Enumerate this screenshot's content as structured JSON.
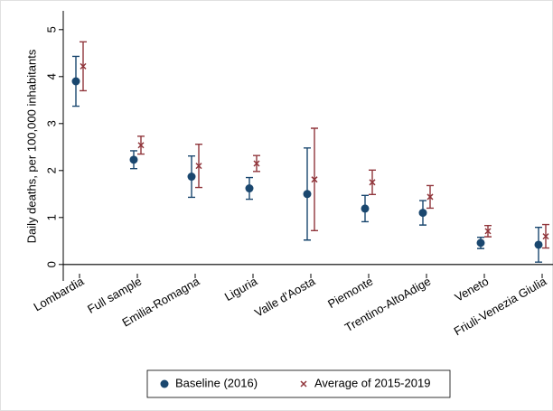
{
  "chart_data": {
    "type": "errorbar",
    "y_label": "Daily deaths, per 100,000 inhabitants",
    "categories": [
      "Lombardia",
      "Full sample",
      "Emilia-Romagna",
      "Liguria",
      "Valle d'Aosta",
      "Piemonte",
      "Trentino-AltoAdige",
      "Veneto",
      "Friuli-Venezia Giulia"
    ],
    "series": [
      {
        "name": "Baseline (2016)",
        "color": "#1a476f",
        "marker": "circle",
        "values": [
          3.9,
          2.23,
          1.87,
          1.62,
          1.5,
          1.19,
          1.1,
          0.46,
          0.42
        ],
        "errors": [
          0.53,
          0.19,
          0.44,
          0.23,
          0.98,
          0.28,
          0.26,
          0.12,
          0.37
        ]
      },
      {
        "name": "Average of 2015-2019",
        "color": "#90353b",
        "marker": "x",
        "values": [
          4.22,
          2.54,
          2.1,
          2.15,
          1.81,
          1.75,
          1.44,
          0.71,
          0.6
        ],
        "errors": [
          0.52,
          0.19,
          0.46,
          0.17,
          1.09,
          0.26,
          0.24,
          0.12,
          0.25
        ]
      }
    ],
    "ylim": [
      -0.35,
      5.4
    ],
    "yticks": [
      0,
      1,
      2,
      3,
      4,
      5
    ],
    "grid": false,
    "legend": "bottom"
  }
}
